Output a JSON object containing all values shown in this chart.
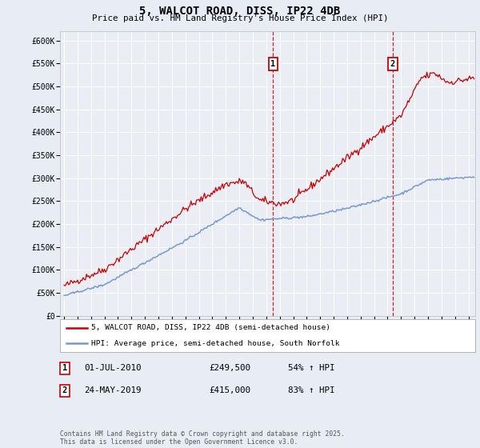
{
  "title": "5, WALCOT ROAD, DISS, IP22 4DB",
  "subtitle": "Price paid vs. HM Land Registry's House Price Index (HPI)",
  "ylabel_ticks": [
    "£0",
    "£50K",
    "£100K",
    "£150K",
    "£200K",
    "£250K",
    "£300K",
    "£350K",
    "£400K",
    "£450K",
    "£500K",
    "£550K",
    "£600K"
  ],
  "ytick_values": [
    0,
    50000,
    100000,
    150000,
    200000,
    250000,
    300000,
    350000,
    400000,
    450000,
    500000,
    550000,
    600000
  ],
  "xlim_start": 1994.7,
  "xlim_end": 2025.5,
  "ylim_min": 0,
  "ylim_max": 620000,
  "background_color": "#e8ecf4",
  "plot_bg_color": "#ebedf5",
  "grid_color": "#ffffff",
  "red_line_color": "#cc0000",
  "blue_line_color": "#7799cc",
  "marker1_x": 2010.5,
  "marker2_x": 2019.38,
  "marker1_label": "1",
  "marker2_label": "2",
  "marker1_date": "01-JUL-2010",
  "marker1_price": "£249,500",
  "marker1_hpi": "54% ↑ HPI",
  "marker2_date": "24-MAY-2019",
  "marker2_price": "£415,000",
  "marker2_hpi": "83% ↑ HPI",
  "legend_label1": "5, WALCOT ROAD, DISS, IP22 4DB (semi-detached house)",
  "legend_label2": "HPI: Average price, semi-detached house, South Norfolk",
  "footer": "Contains HM Land Registry data © Crown copyright and database right 2025.\nThis data is licensed under the Open Government Licence v3.0.",
  "xtick_years": [
    1995,
    1996,
    1997,
    1998,
    1999,
    2000,
    2001,
    2002,
    2003,
    2004,
    2005,
    2006,
    2007,
    2008,
    2009,
    2010,
    2011,
    2012,
    2013,
    2014,
    2015,
    2016,
    2017,
    2018,
    2019,
    2020,
    2021,
    2022,
    2023,
    2024,
    2025
  ]
}
